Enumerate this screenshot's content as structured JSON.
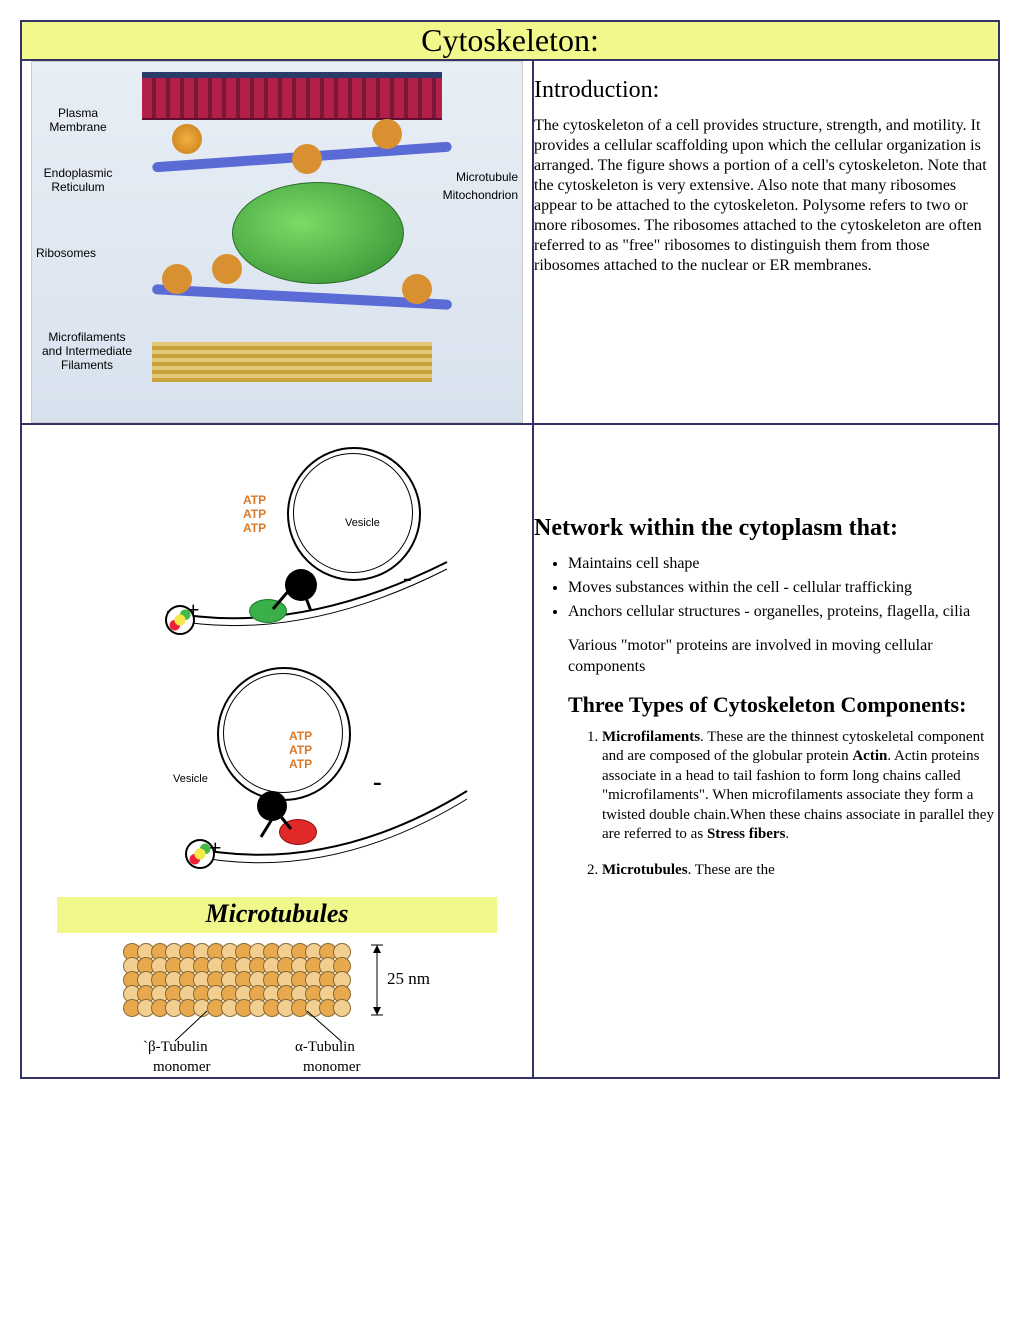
{
  "title": "Cytoskeleton:",
  "row1": {
    "diagram_labels": {
      "plasma": "Plasma\nMembrane",
      "er": "Endoplasmic\nReticulum",
      "ribosomes": "Ribosomes",
      "microfilaments": "Microfilaments\nand Intermediate\nFilaments",
      "microtubule": "Microtubule",
      "mitochondrion": "Mitochondrion"
    },
    "intro_heading": "Introduction:",
    "intro_text": "The cytoskeleton of a cell provides structure, strength, and motility. It provides a cellular scaffolding upon which the cellular organization is arranged. The figure shows a portion of a cell's cytoskeleton. Note that the cytoskeleton is very extensive. Also note that many ribosomes appear to be attached to the cytoskeleton. Polysome refers to two or more ribosomes. The ribosomes attached to the cytoskeleton are often referred to as \"free\" ribosomes to distinguish them from those ribosomes attached to the nuclear or ER membranes."
  },
  "row2": {
    "vesicle_label": "Vesicle",
    "atp_label": "ATP",
    "plus": "+",
    "minus": "-",
    "microtubules_title": "Microtubules",
    "diameter": "25 nm",
    "beta": "β-Tubulin",
    "alpha": "α-Tubulin",
    "monomer": "monomer",
    "network_heading": "Network within the cytoplasm that:",
    "bullets": [
      "Maintains cell shape",
      "Moves substances within the cell - cellular trafficking",
      "Anchors cellular structures - organelles, proteins, flagella, cilia"
    ],
    "motor_note": "Various \"motor\" proteins are involved in moving cellular components",
    "types_heading": "Three Types of Cytoskeleton Components:",
    "types": [
      {
        "name": "Microfilaments",
        "text_before": ". These are the thinnest cytoskeletal component and are composed of the globular protein ",
        "bold_mid": "Actin",
        "text_mid": ". Actin proteins associate in a head to tail fashion to form long chains called \"microfilaments\". When microfilaments associate they form a twisted double chain.When these chains associate in parallel they are referred to as ",
        "bold_end": "Stress fibers",
        "text_end": "."
      },
      {
        "name": "Microtubules",
        "text_before": ". These are the",
        "bold_mid": "",
        "text_mid": "",
        "bold_end": "",
        "text_end": ""
      }
    ]
  },
  "colors": {
    "title_bg": "#f2f88b",
    "border": "#333366",
    "atp": "#d97a2a",
    "tube_dark": "#e8a94e",
    "tube_light": "#f2cf91",
    "motor_green": "#3bb04a",
    "motor_red": "#e02a2a"
  }
}
